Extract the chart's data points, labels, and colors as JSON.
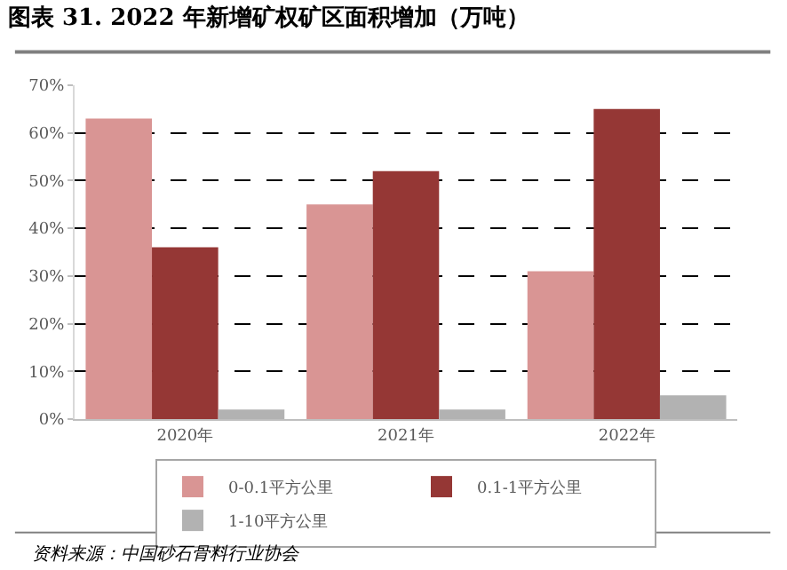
{
  "chart_data": {
    "type": "bar",
    "title": "图表 31. 2022 年新增矿权矿区面积增加（万吨）",
    "categories": [
      "2020年",
      "2021年",
      "2022年"
    ],
    "series": [
      {
        "name": "0-0.1平方公里",
        "color": "#d99594",
        "values": [
          63,
          45,
          31
        ]
      },
      {
        "name": "0.1-1平方公里",
        "color": "#953735",
        "values": [
          36,
          52,
          65
        ]
      },
      {
        "name": "1-10平方公里",
        "color": "#b2b2b2",
        "values": [
          2,
          2,
          5
        ]
      }
    ],
    "ylim": [
      0,
      70
    ],
    "yticks": [
      {
        "value": 0,
        "label": "0%"
      },
      {
        "value": 10,
        "label": "10%"
      },
      {
        "value": 20,
        "label": "20%"
      },
      {
        "value": 30,
        "label": "30%"
      },
      {
        "value": 40,
        "label": "40%"
      },
      {
        "value": 50,
        "label": "50%"
      },
      {
        "value": 60,
        "label": "60%"
      },
      {
        "value": 70,
        "label": "70%"
      }
    ],
    "grid": "y",
    "legend": "bottom",
    "annotations": [
      "资料来源：中国砂石骨料行业协会"
    ]
  }
}
